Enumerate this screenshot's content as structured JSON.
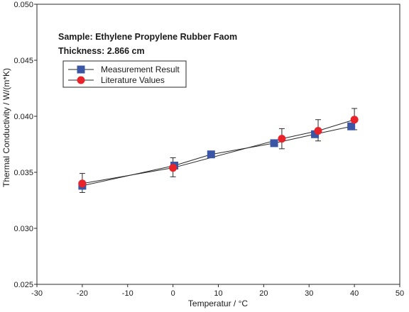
{
  "chart_data": {
    "type": "scatter",
    "title": "",
    "annotations": [
      "Sample: Ethylene Propylene Rubber Faom",
      "Thickness: 2.866 cm"
    ],
    "xlabel": "Temperatur / °C",
    "ylabel": "Thermal Conductivity / W/(m*K)",
    "xlim": [
      -30,
      50
    ],
    "ylim": [
      0.025,
      0.05
    ],
    "xticks": [
      -30,
      -20,
      -10,
      0,
      10,
      20,
      30,
      40,
      50
    ],
    "yticks": [
      0.025,
      0.03,
      0.035,
      0.04,
      0.045,
      0.05
    ],
    "xtick_labels": [
      "-30",
      "-20",
      "-10",
      "0",
      "10",
      "20",
      "30",
      "40",
      "50"
    ],
    "ytick_labels": [
      "0.025",
      "0.030",
      "0.035",
      "0.040",
      "0.045",
      "0.050"
    ],
    "grid": false,
    "legend_position": "top-left",
    "series": [
      {
        "name": "Measurement Result",
        "marker": "square",
        "color": "#3a56a5",
        "x": [
          -20,
          0.3,
          8.4,
          22.3,
          31.3,
          39.3
        ],
        "y": [
          0.0338,
          0.0356,
          0.0366,
          0.0376,
          0.0384,
          0.0391
        ]
      },
      {
        "name": "Literature Values",
        "marker": "circle",
        "color": "#e8232a",
        "x": [
          -20,
          0,
          24,
          32,
          40
        ],
        "y": [
          0.034,
          0.0354,
          0.038,
          0.0387,
          0.0397
        ],
        "err_low": [
          0.0332,
          0.0346,
          0.0371,
          0.0378,
          0.0388
        ],
        "err_high": [
          0.0349,
          0.0363,
          0.0389,
          0.0397,
          0.0407
        ]
      }
    ]
  }
}
